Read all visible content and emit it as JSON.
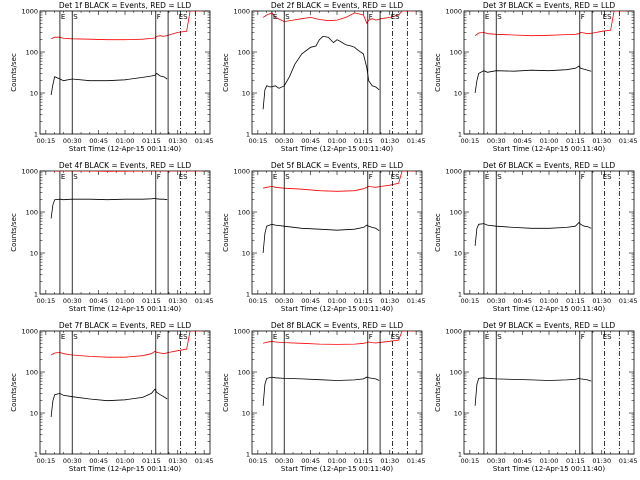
{
  "figure": {
    "xlabel": "Start Time (12-Apr-15 00:11:40)",
    "ylabel": "Counts/sec",
    "x_tick_labels": [
      "00:15",
      "00:30",
      "00:45",
      "01:00",
      "01:15",
      "01:30",
      "01:45"
    ],
    "y_tick_labels": [
      "1",
      "10",
      "100",
      "1000"
    ],
    "colors": {
      "events": "#000000",
      "lld": "#ff0000"
    },
    "markers": {
      "E": 23.0,
      "S": 30.0,
      "F": 77.5,
      "ES": 90.0
    }
  },
  "chart_data": [
    {
      "type": "line",
      "title": "Det 1f BLACK = Events, RED = LLD",
      "xlim": [
        11.67,
        108.33
      ],
      "ylim": [
        1,
        1000
      ],
      "yscale": "log",
      "vlines_solid": [
        23.0,
        30.0,
        77.5,
        84.5
      ],
      "vlines_dashdot": [
        91.5,
        100.0
      ],
      "series": [
        {
          "name": "Events",
          "x": [
            18,
            19,
            20,
            23,
            25,
            30,
            40,
            50,
            60,
            70,
            75,
            77,
            78,
            80,
            82,
            84
          ],
          "y": [
            9,
            16,
            25,
            22,
            20,
            22,
            20,
            20,
            21,
            24,
            26,
            27,
            30,
            26,
            25,
            22
          ]
        },
        {
          "name": "LLD",
          "x": [
            18,
            20,
            23,
            25,
            30,
            40,
            50,
            60,
            70,
            75,
            77,
            78,
            80,
            82,
            85,
            90,
            95,
            97,
            100,
            104
          ],
          "y": [
            210,
            230,
            230,
            215,
            210,
            205,
            200,
            200,
            205,
            215,
            220,
            240,
            250,
            240,
            260,
            300,
            320,
            1000,
            1000,
            1000
          ]
        }
      ]
    },
    {
      "type": "line",
      "title": "Det 2f BLACK = Events, RED = LLD",
      "xlim": [
        11.67,
        108.33
      ],
      "ylim": [
        1,
        1000
      ],
      "yscale": "log",
      "vlines_solid": [
        23.0,
        30.0,
        77.5,
        84.5
      ],
      "vlines_dashdot": [
        91.5,
        100.0
      ],
      "series": [
        {
          "name": "Events",
          "x": [
            18,
            19,
            20,
            22,
            25,
            27,
            30,
            33,
            36,
            40,
            45,
            48,
            50,
            52,
            55,
            58,
            60,
            62,
            65,
            68,
            70,
            72,
            75,
            77,
            78,
            80,
            82,
            84
          ],
          "y": [
            4,
            12,
            15,
            14,
            15,
            13,
            15,
            25,
            50,
            90,
            130,
            140,
            200,
            240,
            230,
            170,
            200,
            180,
            150,
            140,
            130,
            110,
            90,
            40,
            20,
            15,
            14,
            12
          ]
        },
        {
          "name": "LLD",
          "x": [
            18,
            20,
            23,
            25,
            30,
            35,
            40,
            45,
            50,
            55,
            60,
            65,
            70,
            75,
            77,
            78,
            80,
            82,
            85,
            90,
            95,
            97,
            100,
            104
          ],
          "y": [
            700,
            800,
            900,
            700,
            550,
            600,
            650,
            700,
            620,
            580,
            600,
            700,
            900,
            800,
            500,
            600,
            650,
            600,
            650,
            700,
            800,
            1000,
            1000,
            1000
          ]
        }
      ]
    },
    {
      "type": "line",
      "title": "Det 3f BLACK = Events, RED = LLD",
      "xlim": [
        11.67,
        108.33
      ],
      "ylim": [
        1,
        1000
      ],
      "yscale": "log",
      "vlines_solid": [
        23.0,
        30.0,
        77.5,
        84.5
      ],
      "vlines_dashdot": [
        91.5,
        100.0
      ],
      "series": [
        {
          "name": "Events",
          "x": [
            18,
            19,
            20,
            23,
            25,
            30,
            40,
            50,
            60,
            70,
            75,
            77,
            78,
            80,
            82,
            84
          ],
          "y": [
            10,
            20,
            30,
            35,
            32,
            35,
            34,
            36,
            35,
            37,
            40,
            45,
            40,
            38,
            36,
            34
          ]
        },
        {
          "name": "LLD",
          "x": [
            18,
            20,
            23,
            25,
            30,
            40,
            50,
            60,
            70,
            75,
            77,
            78,
            80,
            82,
            85,
            90,
            95,
            97,
            100,
            104
          ],
          "y": [
            250,
            290,
            300,
            280,
            270,
            260,
            250,
            255,
            265,
            270,
            280,
            300,
            290,
            280,
            290,
            320,
            340,
            1000,
            1000,
            1000
          ]
        }
      ]
    },
    {
      "type": "line",
      "title": "Det 4f BLACK = Events, RED = LLD",
      "xlim": [
        11.67,
        108.33
      ],
      "ylim": [
        1,
        1000
      ],
      "yscale": "log",
      "vlines_solid": [
        23.0,
        30.0,
        77.5,
        84.5
      ],
      "vlines_dashdot": [
        91.5,
        100.0
      ],
      "series": [
        {
          "name": "Events",
          "x": [
            18,
            19,
            20,
            23,
            25,
            30,
            40,
            50,
            60,
            70,
            75,
            77,
            78,
            80,
            82,
            84
          ],
          "y": [
            70,
            150,
            200,
            205,
            200,
            205,
            205,
            200,
            205,
            205,
            210,
            215,
            210,
            205,
            205,
            200
          ]
        },
        {
          "name": "LLD",
          "x": [
            18,
            20,
            23,
            25,
            30,
            40,
            50,
            60,
            70,
            75,
            80,
            85,
            90,
            95,
            100,
            104
          ],
          "y": [
            1000,
            1000,
            1000,
            1000,
            1000,
            1000,
            980,
            990,
            1000,
            1000,
            1000,
            1000,
            1000,
            1000,
            1000,
            1000
          ]
        }
      ]
    },
    {
      "type": "line",
      "title": "Det 5f BLACK = Events, RED = LLD",
      "xlim": [
        11.67,
        108.33
      ],
      "ylim": [
        1,
        1000
      ],
      "yscale": "log",
      "vlines_solid": [
        23.0,
        30.0,
        77.5,
        84.5
      ],
      "vlines_dashdot": [
        91.5,
        100.0
      ],
      "series": [
        {
          "name": "Events",
          "x": [
            18,
            19,
            20,
            23,
            25,
            30,
            40,
            50,
            60,
            70,
            75,
            77,
            78,
            80,
            82,
            84
          ],
          "y": [
            10,
            30,
            45,
            50,
            48,
            45,
            40,
            38,
            36,
            38,
            42,
            48,
            45,
            42,
            40,
            35
          ]
        },
        {
          "name": "LLD",
          "x": [
            18,
            20,
            23,
            25,
            30,
            40,
            50,
            60,
            70,
            75,
            77,
            78,
            80,
            82,
            85,
            90,
            95,
            97,
            100,
            104
          ],
          "y": [
            380,
            400,
            420,
            400,
            380,
            360,
            330,
            320,
            330,
            370,
            400,
            420,
            410,
            400,
            420,
            450,
            500,
            1000,
            1000,
            1000
          ]
        }
      ]
    },
    {
      "type": "line",
      "title": "Det 6f BLACK = Events, RED = LLD",
      "xlim": [
        11.67,
        108.33
      ],
      "ylim": [
        1,
        1000
      ],
      "yscale": "log",
      "vlines_solid": [
        23.0,
        30.0,
        77.5,
        84.5
      ],
      "vlines_dashdot": [
        91.5,
        100.0
      ],
      "series": [
        {
          "name": "Events",
          "x": [
            18,
            19,
            20,
            23,
            25,
            30,
            40,
            50,
            60,
            70,
            75,
            77,
            78,
            80,
            82,
            84
          ],
          "y": [
            15,
            40,
            50,
            52,
            48,
            45,
            42,
            40,
            40,
            42,
            45,
            55,
            50,
            45,
            44,
            40
          ]
        }
      ]
    },
    {
      "type": "line",
      "title": "Det 7f BLACK = Events, RED = LLD",
      "xlim": [
        11.67,
        108.33
      ],
      "ylim": [
        1,
        1000
      ],
      "yscale": "log",
      "vlines_solid": [
        23.0,
        30.0,
        77.5,
        84.5
      ],
      "vlines_dashdot": [
        91.5,
        100.0
      ],
      "series": [
        {
          "name": "Events",
          "x": [
            18,
            19,
            20,
            23,
            25,
            30,
            40,
            50,
            60,
            70,
            75,
            77,
            78,
            80,
            82,
            84
          ],
          "y": [
            8,
            20,
            28,
            30,
            27,
            25,
            22,
            20,
            21,
            24,
            30,
            38,
            32,
            28,
            25,
            22
          ]
        },
        {
          "name": "LLD",
          "x": [
            18,
            20,
            23,
            25,
            30,
            40,
            50,
            60,
            70,
            75,
            77,
            78,
            80,
            82,
            85,
            90,
            95,
            97,
            100,
            104
          ],
          "y": [
            260,
            290,
            300,
            280,
            260,
            240,
            230,
            230,
            250,
            280,
            320,
            300,
            290,
            280,
            300,
            330,
            360,
            1000,
            1000,
            1000
          ]
        }
      ]
    },
    {
      "type": "line",
      "title": "Det 8f BLACK = Events, RED = LLD",
      "xlim": [
        11.67,
        108.33
      ],
      "ylim": [
        1,
        1000
      ],
      "yscale": "log",
      "vlines_solid": [
        23.0,
        30.0,
        77.5,
        84.5
      ],
      "vlines_dashdot": [
        91.5,
        100.0
      ],
      "series": [
        {
          "name": "Events",
          "x": [
            18,
            19,
            20,
            23,
            25,
            30,
            40,
            50,
            60,
            70,
            75,
            77,
            78,
            80,
            82,
            84
          ],
          "y": [
            15,
            50,
            70,
            75,
            72,
            70,
            68,
            65,
            62,
            64,
            68,
            75,
            72,
            70,
            68,
            62
          ]
        },
        {
          "name": "LLD",
          "x": [
            18,
            20,
            23,
            25,
            30,
            40,
            50,
            60,
            70,
            75,
            77,
            78,
            80,
            82,
            85,
            90,
            95,
            97,
            100,
            104
          ],
          "y": [
            500,
            530,
            560,
            540,
            520,
            500,
            480,
            470,
            480,
            500,
            520,
            540,
            520,
            510,
            530,
            560,
            600,
            1000,
            1000,
            1000
          ]
        }
      ]
    },
    {
      "type": "line",
      "title": "Det 9f BLACK = Events, RED = LLD",
      "xlim": [
        11.67,
        108.33
      ],
      "ylim": [
        1,
        1000
      ],
      "yscale": "log",
      "vlines_solid": [
        23.0,
        30.0,
        77.5,
        84.5
      ],
      "vlines_dashdot": [
        91.5,
        100.0
      ],
      "series": [
        {
          "name": "Events",
          "x": [
            18,
            19,
            20,
            23,
            25,
            30,
            40,
            50,
            60,
            70,
            75,
            77,
            78,
            80,
            82,
            84
          ],
          "y": [
            15,
            50,
            70,
            72,
            70,
            68,
            66,
            64,
            62,
            64,
            66,
            70,
            68,
            66,
            64,
            60
          ]
        }
      ]
    }
  ]
}
